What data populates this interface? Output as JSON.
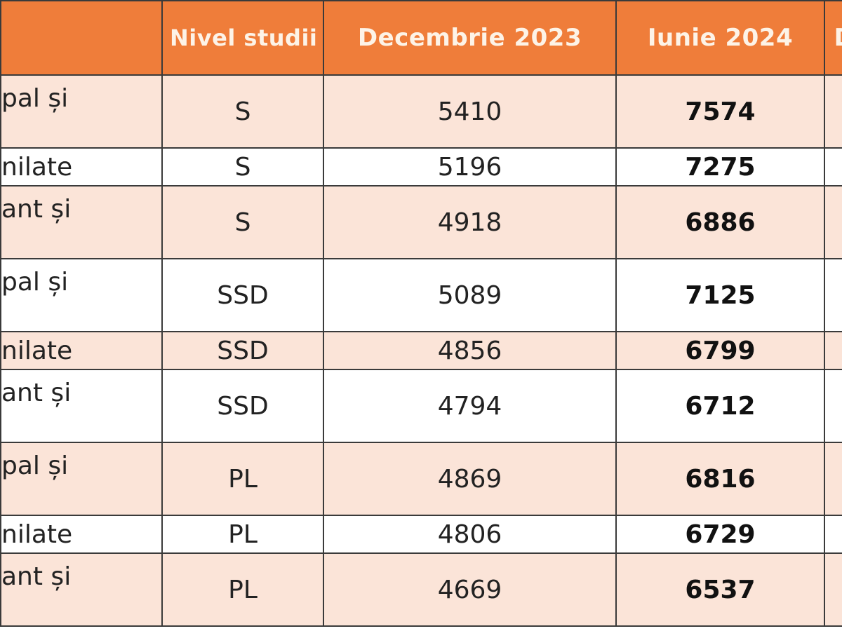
{
  "table": {
    "headers": [
      "",
      "Nivel studii",
      "Decembrie 2023",
      "Iunie 2024",
      "D"
    ],
    "rows": [
      {
        "func": "pal și",
        "level": "S",
        "dec": "5410",
        "iun": "7574"
      },
      {
        "func": "nilate",
        "level": "S",
        "dec": "5196",
        "iun": "7275"
      },
      {
        "func": "ant și",
        "level": "S",
        "dec": "4918",
        "iun": "6886"
      },
      {
        "func": "pal și",
        "level": "SSD",
        "dec": "5089",
        "iun": "7125"
      },
      {
        "func": "nilate",
        "level": "SSD",
        "dec": "4856",
        "iun": "6799"
      },
      {
        "func": "ant și",
        "level": "SSD",
        "dec": "4794",
        "iun": "6712"
      },
      {
        "func": "pal și",
        "level": "PL",
        "dec": "4869",
        "iun": "6816"
      },
      {
        "func": "nilate",
        "level": "PL",
        "dec": "4806",
        "iun": "6729"
      },
      {
        "func": "ant și",
        "level": "PL",
        "dec": "4669",
        "iun": "6537"
      }
    ]
  }
}
